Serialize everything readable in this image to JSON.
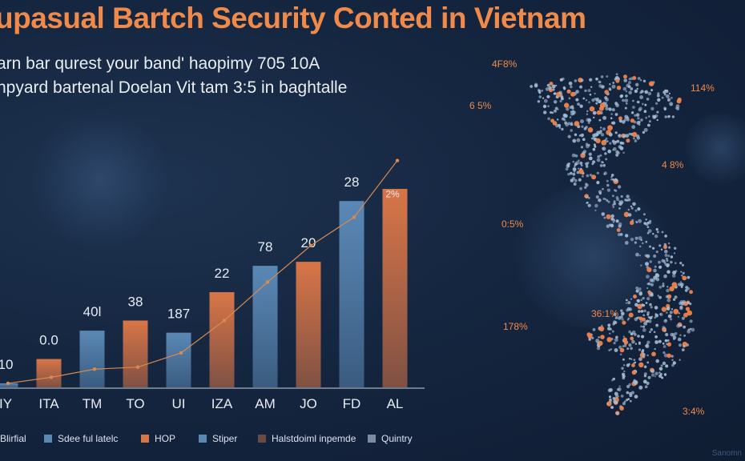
{
  "title": "upasual Bartch Security Conted in Vietnam",
  "subtitle_lines": [
    "arn bar qurest your band' haopimy 705 10A",
    "npyard bartenal Doelan Vit tam 3:5 in baghtalle"
  ],
  "colors": {
    "title": "#f08a4b",
    "background": "#152640",
    "bar_blue": "#5a88b5",
    "bar_orange": "#d87547",
    "line": "#d98a4e",
    "map_dot": "#a8bfd8",
    "map_hotspot": "#f0834a",
    "map_label": "#f08a4b"
  },
  "chart_data": {
    "type": "bar",
    "categories": [
      "IY",
      "ITA",
      "TM",
      "TO",
      "UI",
      "IZA",
      "AM",
      "JO",
      "FD",
      "AL"
    ],
    "values": [
      2,
      14,
      28,
      33,
      27,
      47,
      60,
      62,
      92,
      98
    ],
    "bar_colors": [
      "blue",
      "orange",
      "blue",
      "orange",
      "blue",
      "orange",
      "blue",
      "orange",
      "blue",
      "orange"
    ],
    "data_labels": [
      "10",
      "0.0",
      "40l",
      "38",
      "187",
      "22",
      "78",
      "20",
      "28",
      ""
    ],
    "line": {
      "values": [
        2,
        5,
        9,
        10,
        17,
        33,
        52,
        70,
        84,
        112
      ],
      "end_label": "2%"
    },
    "ylim": [
      0,
      112
    ],
    "legend": [
      {
        "label": "Blirfial",
        "color": "none"
      },
      {
        "label": "Sdee ful latelc",
        "color": "#5a88b5"
      },
      {
        "label": "HOP",
        "color": "#d87547"
      },
      {
        "label": "Stiper",
        "color": "#5a88b5"
      },
      {
        "label": "Halstdoiml inpemde",
        "color": "#6b4a44"
      },
      {
        "label": "Quintry",
        "color": "#7d8aa0"
      }
    ]
  },
  "map": {
    "labels": [
      "4F8%",
      "114%",
      "6 5%",
      "4 8%",
      "0:5%",
      "36:1%",
      "178%",
      "3:4%"
    ]
  },
  "watermark": "Sanomn"
}
